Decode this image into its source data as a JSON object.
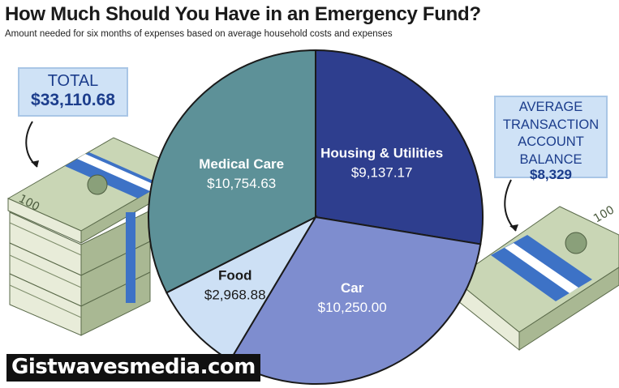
{
  "header": {
    "title": "How Much Should You Have in an Emergency Fund?",
    "subtitle": "Amount needed for six months of expenses based on average household costs and expenses"
  },
  "callouts": {
    "total": {
      "label": "TOTAL",
      "value": "$33,110.68"
    },
    "average": {
      "label_lines": [
        "AVERAGE",
        "TRANSACTION",
        "ACCOUNT",
        "BALANCE"
      ],
      "value": "$8,329"
    }
  },
  "watermark": "Gistwavesmedia.com",
  "chart_data": {
    "type": "pie",
    "title": "How Much Should You Have in an Emergency Fund?",
    "subtitle": "Amount needed for six months of expenses based on average household costs and expenses",
    "slices": [
      {
        "name": "Housing & Utilities",
        "value": 9137.17,
        "label": "$9,137.17",
        "color": "#2e3e8e",
        "text_color": "#ffffff"
      },
      {
        "name": "Car",
        "value": 10250.0,
        "label": "$10,250.00",
        "color": "#7e8dcf",
        "text_color": "#ffffff"
      },
      {
        "name": "Food",
        "value": 2968.88,
        "label": "$2,968.88",
        "color": "#cde0f5",
        "text_color": "#1a1a1a"
      },
      {
        "name": "Medical Care",
        "value": 10754.63,
        "label": "$10,754.63",
        "color": "#5d9198",
        "text_color": "#ffffff"
      }
    ],
    "start_angle_deg": 0,
    "direction": "clockwise",
    "legend": "none"
  },
  "colors": {
    "callout_bg": "#cfe2f6",
    "callout_text": "#1c3d8c",
    "money_green": "#b7c7a2",
    "band_blue": "#3d72c6"
  },
  "icons": {
    "left_stacks": "money-stack-icon",
    "right_stack": "money-stack-icon",
    "arrows": "curved-arrow-icon"
  }
}
